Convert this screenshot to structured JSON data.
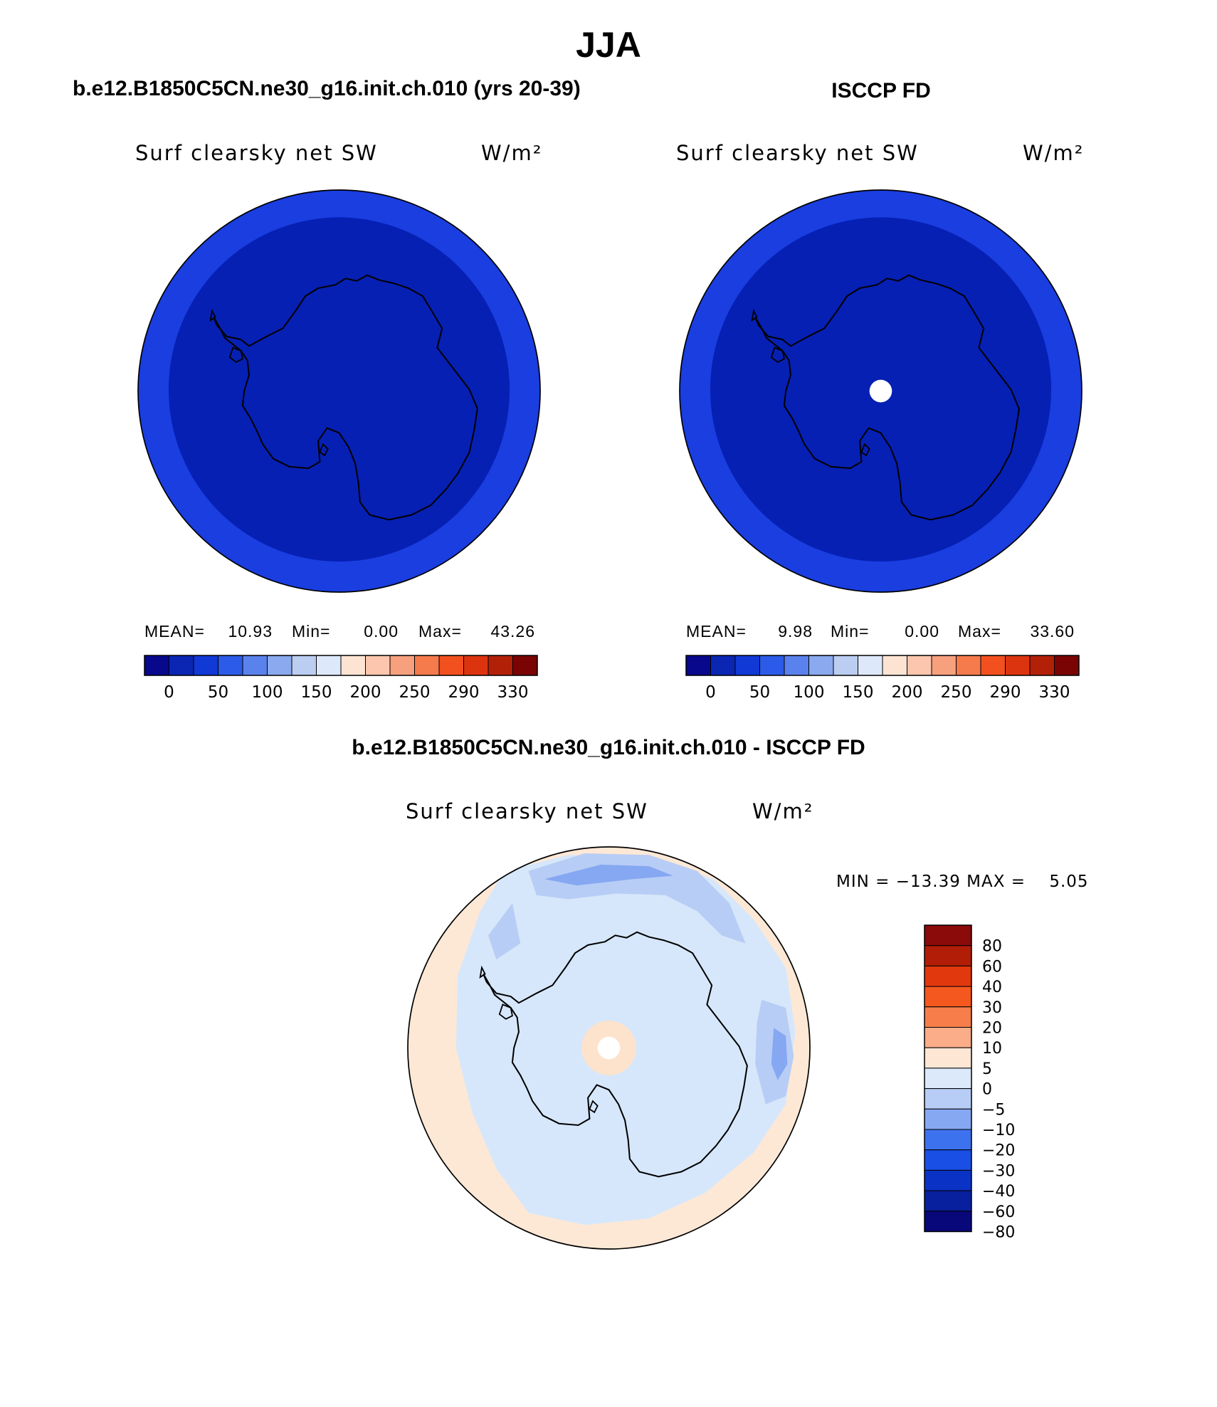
{
  "page_title": "JJA",
  "chart_data": [
    {
      "type": "heatmap",
      "projection": "south polar stereographic",
      "header": "b.e12.B1850C5CN.ne30_g16.init.ch.010 (yrs 20-39)",
      "variable": "Surf clearsky net SW",
      "units": "W/m²",
      "stats": {
        "mean_label": "MEAN=",
        "mean": "10.93",
        "min_label": "Min=",
        "min": "0.00",
        "max_label": "Max=",
        "max": "43.26"
      },
      "colorbar": {
        "orientation": "horizontal",
        "colors": [
          "#08088c",
          "#0a26b3",
          "#1039d6",
          "#2b5be8",
          "#5a82ec",
          "#8aa9ee",
          "#bccdf2",
          "#dde9fb",
          "#fde4d2",
          "#fbc6ad",
          "#f6a07e",
          "#f57a4c",
          "#f2501f",
          "#dd3410",
          "#b32008",
          "#7a0404"
        ],
        "tick_labels": [
          "0",
          "50",
          "100",
          "150",
          "200",
          "250",
          "290",
          "330"
        ]
      },
      "field": {
        "outer_ring_color": "#1a3ee0",
        "interior_color": "#0620b4"
      }
    },
    {
      "type": "heatmap",
      "projection": "south polar stereographic",
      "header": "ISCCP FD",
      "variable": "Surf clearsky net SW",
      "units": "W/m²",
      "stats": {
        "mean_label": "MEAN=",
        "mean": "9.98",
        "min_label": "Min=",
        "min": "0.00",
        "max_label": "Max=",
        "max": "33.60"
      },
      "colorbar": {
        "orientation": "horizontal",
        "colors": [
          "#08088c",
          "#0a26b3",
          "#1039d6",
          "#2b5be8",
          "#5a82ec",
          "#8aa9ee",
          "#bccdf2",
          "#dde9fb",
          "#fde4d2",
          "#fbc6ad",
          "#f6a07e",
          "#f57a4c",
          "#f2501f",
          "#dd3410",
          "#b32008",
          "#7a0404"
        ],
        "tick_labels": [
          "0",
          "50",
          "100",
          "150",
          "200",
          "250",
          "290",
          "330"
        ]
      },
      "field": {
        "outer_ring_color": "#1a3ee0",
        "interior_color": "#0620b4",
        "pole_missing": true
      }
    },
    {
      "type": "heatmap",
      "projection": "south polar stereographic",
      "header": "b.e12.B1850C5CN.ne30_g16.init.ch.010 - ISCCP FD",
      "variable": "Surf clearsky net SW",
      "units": "W/m²",
      "stats_text": "MIN = −13.39 MAX =    5.05",
      "colorbar": {
        "orientation": "vertical",
        "colors_top_to_bottom": [
          "#8b0a0a",
          "#b11d07",
          "#e2380d",
          "#f5581e",
          "#f77e4b",
          "#fbac88",
          "#fde6d4",
          "#dbe9fb",
          "#b7cdf5",
          "#86a8f2",
          "#3d72ee",
          "#1a4fe6",
          "#0a33c6",
          "#08209e",
          "#08087a"
        ],
        "tick_labels": [
          "80",
          "60",
          "40",
          "30",
          "20",
          "10",
          "5",
          "0",
          "−5",
          "−10",
          "−20",
          "−30",
          "−40",
          "−60",
          "−80"
        ]
      },
      "field": {
        "ocean_color": "#fde8d6",
        "ice_zone_color": "#d6e7fb",
        "negative_patch_color": "#b8cdf5",
        "strong_negative_color": "#86a8f2",
        "pole_missing": true
      }
    }
  ]
}
